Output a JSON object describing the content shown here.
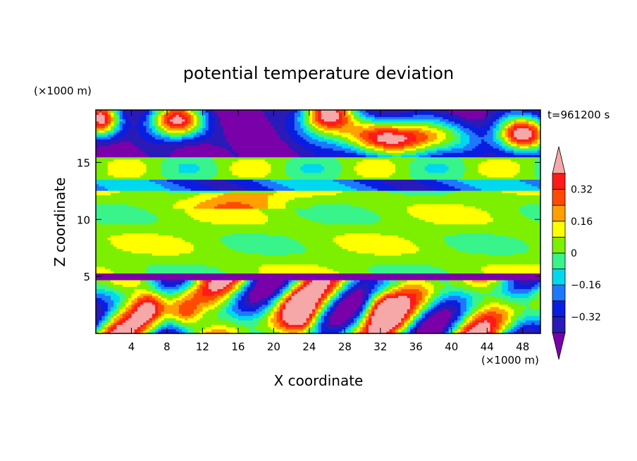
{
  "chart_data": {
    "type": "heatmap",
    "title": "potential temperature deviation",
    "xlabel": "X coordinate",
    "ylabel": "Z coordinate",
    "x_unit": "(×1000 m)",
    "y_unit": "(×1000 m)",
    "time_label": "t=961200 s",
    "xlim": [
      0,
      50
    ],
    "ylim": [
      0,
      19.6
    ],
    "x_ticks": [
      4,
      8,
      12,
      16,
      20,
      24,
      28,
      32,
      36,
      40,
      44,
      48
    ],
    "x_tick_labels": [
      "4",
      "8",
      "12",
      "16",
      "20",
      "24",
      "28",
      "32",
      "36",
      "40",
      "44",
      "48"
    ],
    "y_ticks": [
      5,
      10,
      15
    ],
    "y_tick_labels": [
      "5",
      "10",
      "15"
    ],
    "colorbar": {
      "levels": [
        -0.4,
        -0.32,
        -0.24,
        -0.16,
        -0.08,
        0,
        0.08,
        0.16,
        0.24,
        0.32,
        0.4
      ],
      "tick_values": [
        0.32,
        0.16,
        0,
        -0.16,
        -0.32
      ],
      "tick_labels": [
        "0.32",
        "0.16",
        "0",
        "−0.16",
        "−0.32"
      ],
      "colors": [
        "#7a00aa",
        "#2a1ab8",
        "#0a1de0",
        "#1e78ff",
        "#00d8f0",
        "#38f48a",
        "#7cf000",
        "#ffff00",
        "#ffa000",
        "#ff4a00",
        "#ff1a1a",
        "#f6a8a8"
      ],
      "extend": "both"
    },
    "layers": [
      {
        "z_range": [
          15.5,
          19.6
        ],
        "description_value": -0.45
      },
      {
        "z_range": [
          13.5,
          15.5
        ],
        "description_value": 0.0
      },
      {
        "z_range": [
          12.5,
          13.5
        ],
        "description_value": -0.2
      },
      {
        "z_range": [
          5.2,
          12.5
        ],
        "description_value": 0.05
      },
      {
        "z_range": [
          4.8,
          5.2
        ],
        "description_value": -0.45
      },
      {
        "z_range": [
          0,
          4.8
        ],
        "description_value": 0.0
      }
    ]
  }
}
